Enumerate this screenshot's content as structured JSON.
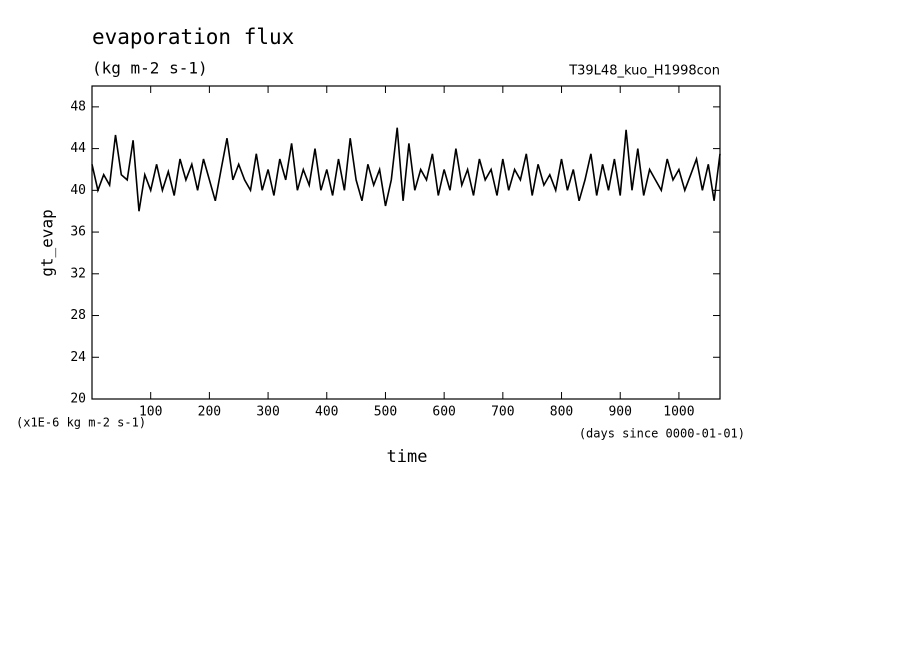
{
  "chart_data": {
    "type": "line",
    "title": "evaporation flux",
    "subtitle": "(kg m-2 s-1)",
    "annotation": "T39L48_kuo_H1998con",
    "y_label": "gt_evap",
    "y_unit": "(x1E-6 kg m-2 s-1)",
    "x_label": "time",
    "x_unit": "(days since 0000-01-01)",
    "x": [
      0,
      10,
      20,
      30,
      40,
      50,
      60,
      70,
      80,
      90,
      100,
      110,
      120,
      130,
      140,
      150,
      160,
      170,
      180,
      190,
      200,
      210,
      220,
      230,
      240,
      250,
      260,
      270,
      280,
      290,
      300,
      310,
      320,
      330,
      340,
      350,
      360,
      370,
      380,
      390,
      400,
      410,
      420,
      430,
      440,
      450,
      460,
      470,
      480,
      490,
      500,
      510,
      520,
      530,
      540,
      550,
      560,
      570,
      580,
      590,
      600,
      610,
      620,
      630,
      640,
      650,
      660,
      670,
      680,
      690,
      700,
      710,
      720,
      730,
      740,
      750,
      760,
      770,
      780,
      790,
      800,
      810,
      820,
      830,
      840,
      850,
      860,
      870,
      880,
      890,
      900,
      910,
      920,
      930,
      940,
      950,
      960,
      970,
      980,
      990,
      1000,
      1010,
      1020,
      1030,
      1040,
      1050,
      1060,
      1070
    ],
    "series": [
      {
        "color": "#000000",
        "values": [
          42.5,
          40,
          41.5,
          40.5,
          45.3,
          41.5,
          41,
          44.8,
          38,
          41.5,
          40,
          42.5,
          40,
          41.8,
          39.5,
          43,
          41,
          42.5,
          40,
          43,
          41,
          39,
          42,
          45,
          41,
          42.5,
          41,
          40,
          43.5,
          40,
          42,
          39.5,
          43,
          41,
          44.5,
          40,
          42,
          40.5,
          44,
          40,
          42,
          39.5,
          43,
          40,
          45,
          41,
          39,
          42.5,
          40.5,
          42,
          38.5,
          41,
          46,
          39,
          44.5,
          40,
          42,
          41,
          43.5,
          39.5,
          42,
          40,
          44,
          40.5,
          42,
          39.5,
          43,
          41,
          42,
          39.5,
          43,
          40,
          42,
          41,
          43.5,
          39.5,
          42.5,
          40.5,
          41.5,
          40,
          43,
          40,
          42,
          39,
          41,
          43.5,
          39.5,
          42.5,
          40,
          43,
          39.5,
          45.8,
          40,
          44,
          39.5,
          42,
          41,
          40,
          43,
          41,
          42,
          40,
          41.5,
          43,
          40,
          42.5,
          39,
          43.5
        ]
      }
    ],
    "xlim": [
      0,
      1070
    ],
    "ylim": [
      20,
      50
    ],
    "xticks": [
      100,
      200,
      300,
      400,
      500,
      600,
      700,
      800,
      900,
      1000
    ],
    "yticks": [
      20,
      24,
      28,
      32,
      36,
      40,
      44,
      48
    ]
  }
}
